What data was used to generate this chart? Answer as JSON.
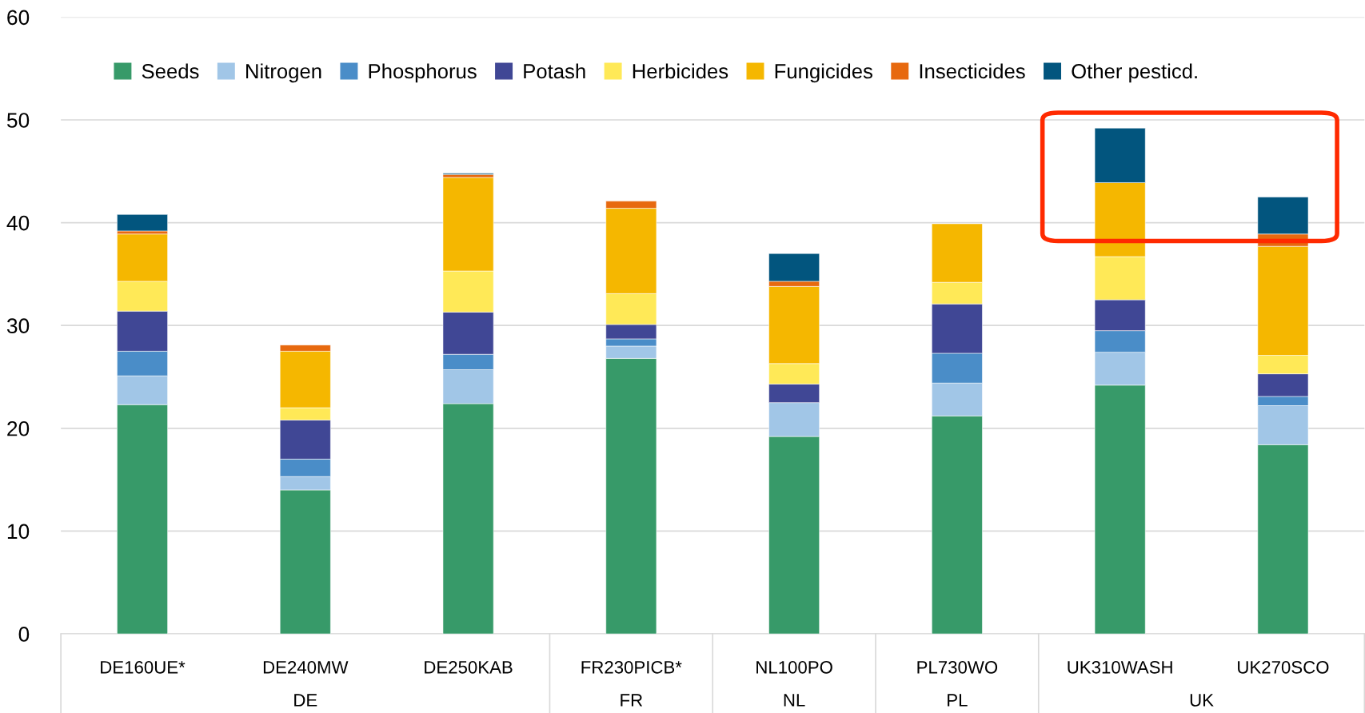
{
  "chart_data": {
    "type": "bar",
    "stacked": true,
    "categories": [
      "DE160UE*",
      "DE240MW",
      "DE250KAB",
      "FR230PICB*",
      "NL100PO",
      "PL730WO",
      "UK310WASH",
      "UK270SCO"
    ],
    "series": [
      {
        "name": "Seeds",
        "color": "#379a69",
        "values": [
          22.3,
          14.0,
          22.4,
          26.8,
          19.2,
          21.2,
          24.2,
          18.4
        ]
      },
      {
        "name": "Nitrogen",
        "color": "#a1c6e7",
        "values": [
          2.8,
          1.3,
          3.3,
          1.2,
          3.3,
          3.2,
          3.2,
          3.8
        ]
      },
      {
        "name": "Phosphorus",
        "color": "#4a8dc8",
        "values": [
          2.4,
          1.7,
          1.5,
          0.7,
          null,
          2.9,
          2.1,
          0.9
        ]
      },
      {
        "name": "Potash",
        "color": "#404795",
        "values": [
          3.9,
          3.8,
          4.1,
          1.4,
          1.8,
          4.8,
          3.0,
          2.2
        ]
      },
      {
        "name": "Herbicides",
        "color": "#ffe957",
        "values": [
          2.9,
          1.2,
          4.0,
          3.0,
          2.0,
          2.1,
          4.2,
          1.8
        ]
      },
      {
        "name": "Fungicides",
        "color": "#f5b700",
        "values": [
          4.6,
          5.5,
          9.1,
          8.3,
          7.5,
          5.7,
          7.2,
          10.6
        ]
      },
      {
        "name": "Insecticides",
        "color": "#e7690f",
        "values": [
          0.3,
          0.6,
          0.3,
          0.7,
          0.5,
          null,
          null,
          1.2
        ]
      },
      {
        "name": "Other pesticd.",
        "color": "#02557e",
        "values": [
          1.6,
          null,
          0.1,
          null,
          2.7,
          null,
          5.3,
          3.6
        ]
      }
    ],
    "ylim": [
      0,
      60
    ],
    "yticks": [
      0,
      10,
      20,
      30,
      40,
      50,
      60
    ],
    "grid": "y",
    "legend": "top",
    "annotations": [
      "DE",
      "FR",
      "NL",
      "PL",
      "UK"
    ]
  }
}
